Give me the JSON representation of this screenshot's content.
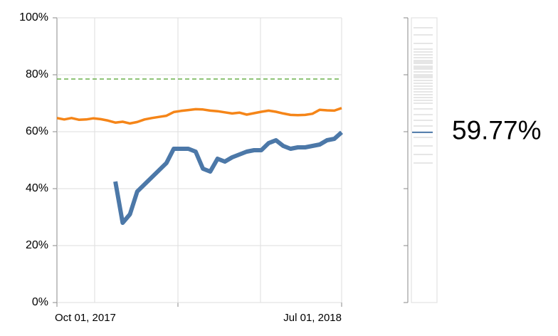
{
  "chart_data": [
    {
      "type": "line",
      "categories": [
        "Oct 01, 2017",
        null,
        null,
        null,
        null,
        null,
        null,
        null,
        null,
        null,
        null,
        null,
        null,
        null,
        null,
        null,
        null,
        null,
        null,
        null,
        null,
        null,
        null,
        null,
        null,
        null,
        null,
        null,
        null,
        null,
        null,
        null,
        null,
        null,
        null,
        null,
        null,
        null,
        null,
        "Jul 01, 2018"
      ],
      "series": [
        {
          "color": "#f58518",
          "values": [
            64.8,
            64.3,
            64.8,
            64.2,
            64.3,
            64.7,
            64.4,
            63.9,
            63.2,
            63.5,
            62.9,
            63.4,
            64.3,
            64.8,
            65.2,
            65.6,
            66.9,
            67.3,
            67.6,
            67.9,
            67.8,
            67.4,
            67.2,
            66.8,
            66.4,
            66.7,
            66.0,
            66.5,
            67.0,
            67.4,
            67.0,
            66.4,
            65.9,
            65.8,
            65.9,
            66.3,
            67.7,
            67.5,
            67.4,
            68.3
          ]
        },
        {
          "color": "#4c78a8",
          "values": [
            null,
            null,
            null,
            null,
            null,
            null,
            null,
            null,
            42.5,
            28,
            31,
            39,
            41.5,
            44,
            46.5,
            49,
            54,
            54,
            54,
            53,
            47,
            46,
            50.5,
            49.5,
            51,
            52,
            53,
            53.5,
            53.5,
            56,
            57,
            55,
            54,
            54.5,
            54.5,
            55,
            55.5,
            57,
            57.5,
            59.77
          ]
        }
      ],
      "reference_value": 78.5,
      "reference_color": "#6ab04c",
      "ylim": [
        0,
        100
      ],
      "yticks": [
        {
          "value": 0,
          "label": "0%"
        },
        {
          "value": 20,
          "label": "20%"
        },
        {
          "value": 40,
          "label": "40%"
        },
        {
          "value": 60,
          "label": "60%"
        },
        {
          "value": 80,
          "label": "80%"
        },
        {
          "value": 100,
          "label": "100%"
        }
      ],
      "grid": true
    },
    {
      "type": "strip",
      "values": [
        96.5,
        94,
        91,
        89,
        88,
        87,
        86,
        85,
        84.5,
        84,
        83,
        82.5,
        82,
        81,
        80,
        79.5,
        79,
        78,
        77,
        76,
        75,
        74,
        73,
        72,
        71,
        70,
        68,
        66,
        64,
        62,
        58,
        55,
        52,
        49
      ],
      "color": "#dddddd",
      "highlight": 59.77,
      "highlight_label": "59.77%",
      "highlight_color": "#4c78a8",
      "ylim": [
        0,
        100
      ],
      "yticks": [
        0,
        20,
        40,
        60,
        80,
        100
      ]
    }
  ]
}
